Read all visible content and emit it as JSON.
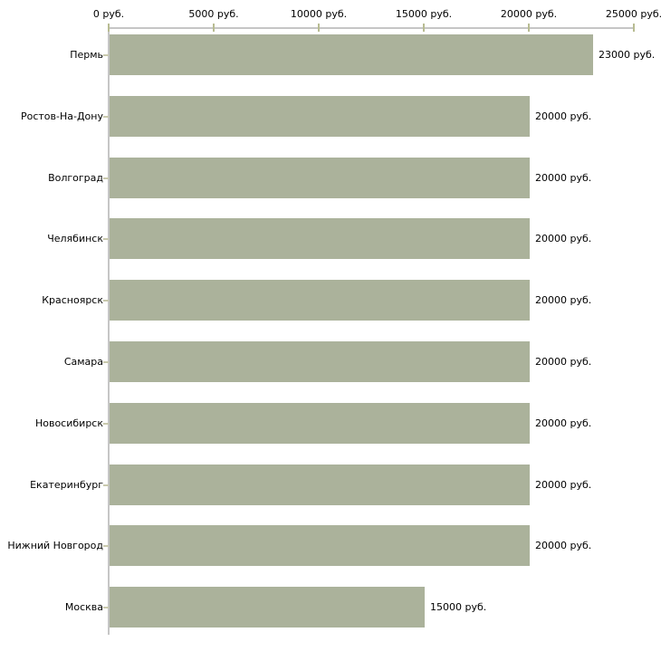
{
  "chart_data": {
    "type": "bar",
    "orientation": "horizontal",
    "title": "",
    "xlabel": "",
    "ylabel": "",
    "grid": false,
    "legend": false,
    "categories": [
      "Пермь",
      "Ростов-На-Дону",
      "Волгоград",
      "Челябинск",
      "Красноярск",
      "Самара",
      "Новосибирск",
      "Екатеринбург",
      "Нижний Новгород",
      "Москва"
    ],
    "values": [
      23000,
      20000,
      20000,
      20000,
      20000,
      20000,
      20000,
      20000,
      20000,
      15000
    ],
    "value_labels": [
      "23000 руб.",
      "20000 руб.",
      "20000 руб.",
      "20000 руб.",
      "20000 руб.",
      "20000 руб.",
      "20000 руб.",
      "20000 руб.",
      "20000 руб.",
      "15000 руб."
    ],
    "x_axis": {
      "position": "top",
      "min": 0,
      "max": 25000,
      "ticks": [
        0,
        5000,
        10000,
        15000,
        20000,
        25000
      ],
      "tick_labels": [
        "0 руб.",
        "5000 руб.",
        "10000 руб.",
        "15000 руб.",
        "20000 руб.",
        "25000 руб."
      ]
    },
    "colors": {
      "bar_fill": "#abb29b",
      "axis_line": "#c6c6c6",
      "x_tick_mark": "#b8bc92",
      "y_tick_mark": "#c9c9ad",
      "text": "#000000",
      "background": "#ffffff"
    }
  }
}
